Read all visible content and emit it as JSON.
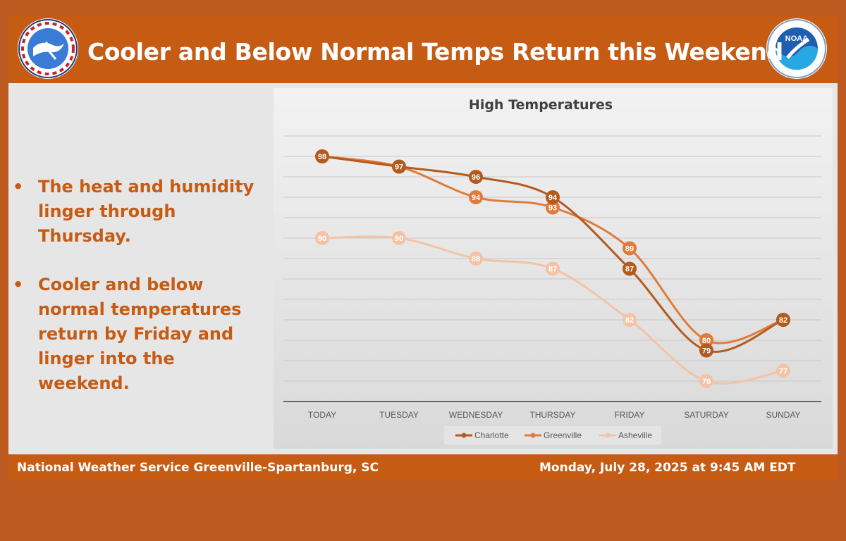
{
  "header": {
    "title": "Cooler and Below Normal Temps Return this Weekend",
    "logos": [
      {
        "icon": "nws-logo-icon",
        "text": "NATIONAL WEATHER SERVICE"
      },
      {
        "icon": "noaa-logo-icon",
        "text": "NOAA"
      }
    ]
  },
  "bullets": [
    "The heat and humidity linger through Thursday.",
    "Cooler and below normal temperatures return by Friday and linger into the weekend."
  ],
  "footer": {
    "left": "National Weather Service Greenville-Spartanburg, SC",
    "right": "Monday, July 28, 2025 at 9:45 AM EDT"
  },
  "colors": {
    "header_bg": "#c65b14",
    "outer_bg": "#bd5a1f",
    "charlotte": "#b35a1d",
    "greenville": "#e07b3a",
    "asheville": "#f4c3a6"
  },
  "chart_data": {
    "type": "line",
    "title": "High Temperatures",
    "categories": [
      "TODAY",
      "TUESDAY",
      "WEDNESDAY",
      "THURSDAY",
      "FRIDAY",
      "SATURDAY",
      "SUNDAY"
    ],
    "series": [
      {
        "name": "Charlotte",
        "values": [
          98,
          97,
          96,
          94,
          87,
          79,
          82
        ],
        "color": "#b35a1d"
      },
      {
        "name": "Greenville",
        "values": [
          98,
          97,
          94,
          93,
          89,
          80,
          82
        ],
        "color": "#e07b3a"
      },
      {
        "name": "Asheville",
        "values": [
          90,
          90,
          88,
          87,
          82,
          76,
          77
        ],
        "color": "#f4c3a6"
      }
    ],
    "ylim": [
      74,
      100
    ],
    "grid": true,
    "legend": "bottom",
    "data_labels": true,
    "xlabel": "",
    "ylabel": ""
  }
}
